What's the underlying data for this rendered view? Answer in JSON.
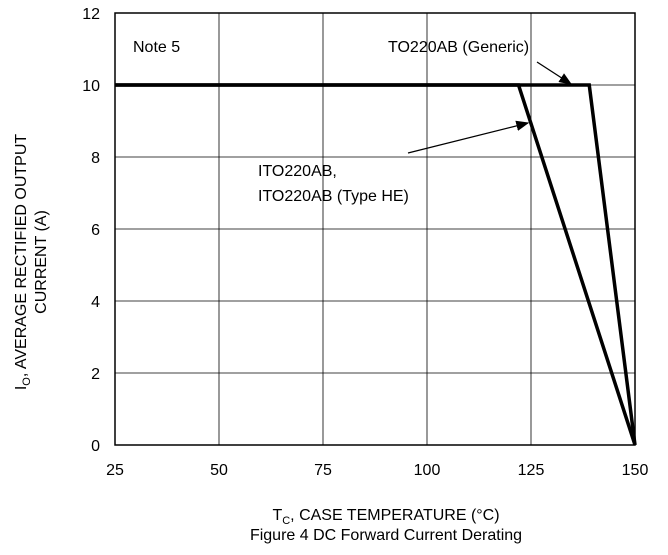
{
  "chart_data": {
    "type": "line",
    "title": "Figure 4 DC Forward Current Derating",
    "xlabel": {
      "prefix": "T",
      "sub": "C",
      "rest": ", CASE TEMPERATURE (°C)"
    },
    "ylabel": {
      "line1_prefix": "I",
      "line1_sub": "O",
      "line1_rest": ", AVERAGE RECTIFIED OUTPUT",
      "line2": "CURRENT (A)"
    },
    "xlim": [
      25,
      150
    ],
    "ylim": [
      0,
      12
    ],
    "xticks": [
      25,
      50,
      75,
      100,
      125,
      150
    ],
    "yticks": [
      0,
      2,
      4,
      6,
      8,
      10,
      12
    ],
    "grid": true,
    "series": [
      {
        "name": "TO220AB (Generic)",
        "x": [
          25,
          139,
          150
        ],
        "y": [
          10,
          10,
          0
        ]
      },
      {
        "name": "ITO220AB, ITO220AB (Type HE)",
        "x": [
          25,
          122,
          150
        ],
        "y": [
          10,
          10,
          0
        ]
      }
    ],
    "annotations": {
      "note": "Note 5",
      "generic_label": "TO220AB (Generic)",
      "ito_label_line1": "ITO220AB,",
      "ito_label_line2": "ITO220AB (Type HE)"
    }
  }
}
